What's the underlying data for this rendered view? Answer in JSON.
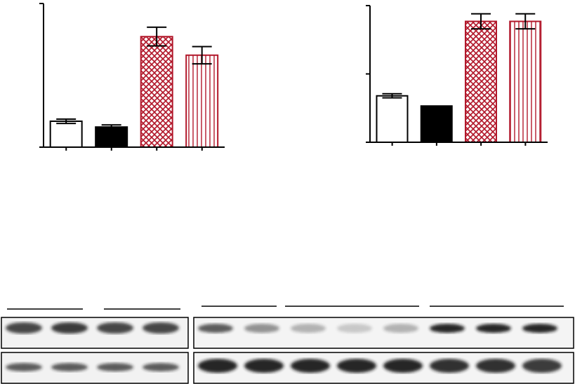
{
  "chart_data": [
    {
      "type": "bar",
      "categories": [
        null,
        null,
        null,
        null
      ],
      "values": [
        1.8,
        1.4,
        7.7,
        6.4
      ],
      "error": [
        0.15,
        0.15,
        0.65,
        0.6
      ],
      "colors": [
        "#ffffff",
        "#000000",
        "#b2182b",
        "#b2182b"
      ],
      "ylim": [
        0,
        10
      ],
      "yticks": [
        0,
        10
      ],
      "tick_labels": false
    },
    {
      "type": "bar",
      "categories": [
        null,
        null,
        null,
        null
      ],
      "values": [
        0.68,
        0.53,
        1.77,
        1.77
      ],
      "error": [
        0.03,
        0.0,
        0.11,
        0.11
      ],
      "colors": [
        "#ffffff",
        "#000000",
        "#b2182b",
        "#b2182b"
      ],
      "ylim": [
        0,
        2
      ],
      "yticks": [
        0,
        1,
        2
      ],
      "tick_labels": false
    }
  ]
}
